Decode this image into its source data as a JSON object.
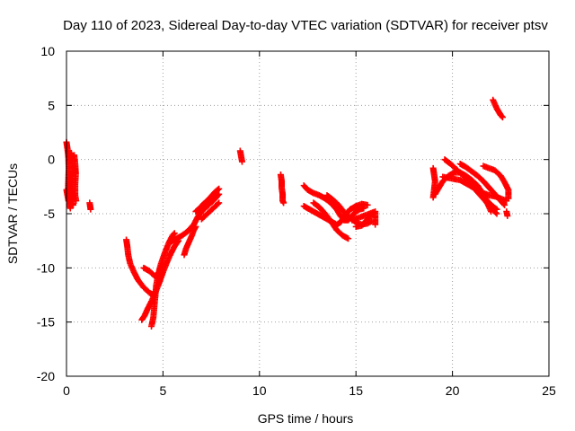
{
  "colors": {
    "background": "#ffffff",
    "series": "#ff0000",
    "axis": "#000000",
    "grid": "#a0a0a0"
  },
  "chart_data": {
    "type": "scatter",
    "title": "Day 110 of 2023, Sidereal Day-to-day VTEC variation (SDTVAR) for receiver ptsv",
    "xlabel": "GPS time / hours",
    "ylabel": "SDTVAR / TECUs",
    "xlim": [
      0,
      25
    ],
    "ylim": [
      -20,
      10
    ],
    "xticks": [
      0,
      5,
      10,
      15,
      20,
      25
    ],
    "yticks": [
      -20,
      -15,
      -10,
      -5,
      0,
      5,
      10
    ],
    "grid": true,
    "marker": "+",
    "series": [
      {
        "name": "SDTVAR",
        "segments": [
          [
            [
              0.0,
              1.6
            ],
            [
              0.05,
              1.0
            ],
            [
              0.1,
              0.2
            ],
            [
              0.12,
              -0.8
            ],
            [
              0.1,
              -1.8
            ],
            [
              0.08,
              -2.8
            ],
            [
              0.1,
              -3.4
            ],
            [
              0.15,
              -4.0
            ],
            [
              0.2,
              -4.5
            ]
          ],
          [
            [
              0.0,
              -2.8
            ],
            [
              0.05,
              -3.3
            ],
            [
              0.1,
              -3.8
            ]
          ],
          [
            [
              0.25,
              0.6
            ],
            [
              0.3,
              0.0
            ],
            [
              0.32,
              -0.8
            ],
            [
              0.3,
              -1.6
            ],
            [
              0.28,
              -2.6
            ],
            [
              0.3,
              -3.5
            ],
            [
              0.35,
              -4.2
            ]
          ],
          [
            [
              0.4,
              0.4
            ],
            [
              0.45,
              -0.4
            ],
            [
              0.48,
              -1.3
            ],
            [
              0.45,
              -2.3
            ],
            [
              0.45,
              -3.3
            ],
            [
              0.5,
              -3.8
            ]
          ],
          [
            [
              1.2,
              -4.0
            ],
            [
              1.25,
              -4.6
            ]
          ],
          [
            [
              3.1,
              -7.4
            ],
            [
              3.15,
              -8.0
            ],
            [
              3.2,
              -8.8
            ],
            [
              3.3,
              -9.6
            ],
            [
              3.5,
              -10.4
            ],
            [
              3.7,
              -11.1
            ],
            [
              4.0,
              -11.8
            ],
            [
              4.3,
              -12.3
            ],
            [
              4.6,
              -12.6
            ]
          ],
          [
            [
              3.9,
              -14.8
            ],
            [
              4.05,
              -14.4
            ],
            [
              4.2,
              -13.8
            ],
            [
              4.4,
              -13.1
            ],
            [
              4.6,
              -12.3
            ],
            [
              4.8,
              -11.4
            ],
            [
              5.0,
              -10.4
            ],
            [
              5.2,
              -9.5
            ],
            [
              5.4,
              -8.7
            ],
            [
              5.6,
              -8.0
            ],
            [
              5.8,
              -7.5
            ]
          ],
          [
            [
              4.4,
              -15.4
            ],
            [
              4.5,
              -14.6
            ],
            [
              4.55,
              -13.6
            ],
            [
              4.6,
              -12.6
            ],
            [
              4.65,
              -11.6
            ],
            [
              4.75,
              -10.6
            ],
            [
              4.9,
              -9.6
            ],
            [
              5.1,
              -8.6
            ],
            [
              5.3,
              -7.7
            ],
            [
              5.5,
              -7.0
            ],
            [
              5.6,
              -6.8
            ]
          ],
          [
            [
              4.0,
              -10.0
            ],
            [
              4.3,
              -10.3
            ],
            [
              4.6,
              -10.8
            ],
            [
              4.8,
              -10.4
            ],
            [
              5.0,
              -9.6
            ]
          ],
          [
            [
              6.1,
              -8.8
            ],
            [
              6.2,
              -8.2
            ],
            [
              6.35,
              -7.6
            ],
            [
              6.5,
              -7.0
            ],
            [
              6.6,
              -6.5
            ],
            [
              6.7,
              -6.2
            ]
          ],
          [
            [
              5.4,
              -7.6
            ],
            [
              5.7,
              -7.3
            ],
            [
              6.0,
              -7.0
            ],
            [
              6.3,
              -6.6
            ],
            [
              6.6,
              -6.0
            ],
            [
              6.8,
              -5.3
            ],
            [
              7.0,
              -4.8
            ],
            [
              7.3,
              -4.3
            ],
            [
              7.6,
              -3.8
            ],
            [
              7.9,
              -3.2
            ]
          ],
          [
            [
              6.7,
              -4.8
            ],
            [
              6.9,
              -4.5
            ],
            [
              7.1,
              -4.1
            ],
            [
              7.3,
              -3.8
            ],
            [
              7.5,
              -3.4
            ],
            [
              7.7,
              -3.0
            ],
            [
              7.9,
              -2.7
            ]
          ],
          [
            [
              7.0,
              -5.5
            ],
            [
              7.3,
              -5.0
            ],
            [
              7.6,
              -4.5
            ],
            [
              7.9,
              -4.0
            ]
          ],
          [
            [
              9.0,
              0.8
            ],
            [
              9.05,
              0.3
            ],
            [
              9.1,
              -0.2
            ]
          ],
          [
            [
              11.1,
              -1.4
            ],
            [
              11.15,
              -2.0
            ],
            [
              11.15,
              -2.6
            ],
            [
              11.2,
              -3.2
            ],
            [
              11.2,
              -3.8
            ],
            [
              11.25,
              -4.0
            ]
          ],
          [
            [
              12.3,
              -2.4
            ],
            [
              12.5,
              -2.8
            ],
            [
              12.8,
              -3.1
            ],
            [
              13.1,
              -3.3
            ],
            [
              13.4,
              -3.6
            ],
            [
              13.7,
              -4.0
            ],
            [
              14.0,
              -4.6
            ],
            [
              14.2,
              -5.2
            ],
            [
              14.4,
              -5.6
            ],
            [
              14.6,
              -5.6
            ],
            [
              14.8,
              -5.2
            ],
            [
              15.0,
              -4.8
            ],
            [
              15.2,
              -4.6
            ],
            [
              15.4,
              -4.5
            ]
          ],
          [
            [
              12.3,
              -4.3
            ],
            [
              12.6,
              -4.6
            ],
            [
              12.9,
              -4.9
            ],
            [
              13.2,
              -5.2
            ],
            [
              13.5,
              -5.5
            ],
            [
              13.8,
              -5.8
            ],
            [
              14.0,
              -6.0
            ],
            [
              14.2,
              -5.8
            ],
            [
              14.5,
              -5.0
            ],
            [
              14.7,
              -4.6
            ],
            [
              15.0,
              -4.3
            ],
            [
              15.3,
              -4.1
            ],
            [
              15.6,
              -4.2
            ]
          ],
          [
            [
              12.8,
              -4.0
            ],
            [
              13.1,
              -4.4
            ],
            [
              13.4,
              -5.0
            ],
            [
              13.7,
              -5.7
            ],
            [
              14.0,
              -6.5
            ],
            [
              14.3,
              -7.0
            ],
            [
              14.6,
              -7.3
            ]
          ],
          [
            [
              13.5,
              -3.3
            ],
            [
              13.8,
              -3.7
            ],
            [
              14.1,
              -4.2
            ],
            [
              14.4,
              -4.9
            ],
            [
              14.7,
              -5.4
            ],
            [
              15.0,
              -5.8
            ],
            [
              15.3,
              -6.0
            ],
            [
              15.6,
              -5.9
            ],
            [
              15.8,
              -5.7
            ]
          ],
          [
            [
              14.8,
              -5.6
            ],
            [
              15.1,
              -5.4
            ],
            [
              15.4,
              -5.2
            ],
            [
              15.7,
              -5.0
            ],
            [
              16.0,
              -4.8
            ],
            [
              16.0,
              -5.5
            ],
            [
              16.0,
              -6.0
            ]
          ],
          [
            [
              15.0,
              -6.2
            ],
            [
              15.3,
              -6.1
            ],
            [
              15.6,
              -5.5
            ],
            [
              15.9,
              -4.9
            ]
          ],
          [
            [
              19.0,
              -0.8
            ],
            [
              19.05,
              -1.4
            ],
            [
              19.1,
              -2.0
            ],
            [
              19.05,
              -2.8
            ],
            [
              19.0,
              -3.5
            ]
          ],
          [
            [
              19.1,
              -3.2
            ],
            [
              19.3,
              -2.6
            ],
            [
              19.5,
              -2.0
            ],
            [
              19.8,
              -1.5
            ],
            [
              20.1,
              -1.2
            ],
            [
              20.4,
              -1.2
            ],
            [
              20.7,
              -1.5
            ],
            [
              21.0,
              -1.9
            ],
            [
              21.3,
              -2.4
            ],
            [
              21.6,
              -3.2
            ],
            [
              21.8,
              -4.0
            ],
            [
              22.0,
              -4.8
            ]
          ],
          [
            [
              19.6,
              0.0
            ],
            [
              19.9,
              -0.4
            ],
            [
              20.2,
              -0.9
            ],
            [
              20.5,
              -1.4
            ],
            [
              20.8,
              -1.9
            ],
            [
              21.1,
              -2.5
            ],
            [
              21.4,
              -3.0
            ],
            [
              21.7,
              -3.6
            ],
            [
              22.0,
              -4.2
            ],
            [
              22.3,
              -4.6
            ]
          ],
          [
            [
              19.5,
              -1.6
            ],
            [
              19.8,
              -1.7
            ],
            [
              20.1,
              -1.8
            ],
            [
              20.4,
              -1.9
            ],
            [
              20.7,
              -2.2
            ],
            [
              21.0,
              -2.5
            ],
            [
              21.3,
              -2.8
            ],
            [
              21.6,
              -3.1
            ],
            [
              21.9,
              -3.3
            ],
            [
              22.2,
              -3.4
            ],
            [
              22.5,
              -3.6
            ],
            [
              22.8,
              -3.8
            ]
          ],
          [
            [
              20.4,
              -0.4
            ],
            [
              20.7,
              -0.7
            ],
            [
              21.0,
              -1.1
            ],
            [
              21.3,
              -1.5
            ],
            [
              21.6,
              -2.0
            ],
            [
              21.9,
              -2.6
            ],
            [
              22.2,
              -3.2
            ],
            [
              22.5,
              -3.8
            ],
            [
              22.7,
              -4.2
            ]
          ],
          [
            [
              21.6,
              -0.6
            ],
            [
              21.9,
              -0.8
            ],
            [
              22.2,
              -1.0
            ],
            [
              22.5,
              -1.5
            ],
            [
              22.7,
              -2.1
            ],
            [
              22.9,
              -2.8
            ],
            [
              22.9,
              -3.6
            ]
          ],
          [
            [
              20.8,
              -2.2
            ],
            [
              21.1,
              -2.6
            ],
            [
              21.4,
              -3.2
            ],
            [
              21.7,
              -3.8
            ],
            [
              22.0,
              -4.5
            ],
            [
              22.3,
              -5.0
            ]
          ],
          [
            [
              22.1,
              5.5
            ],
            [
              22.2,
              5.1
            ],
            [
              22.3,
              4.7
            ],
            [
              22.4,
              4.4
            ],
            [
              22.5,
              4.1
            ],
            [
              22.6,
              3.9
            ]
          ],
          [
            [
              22.8,
              -4.8
            ],
            [
              22.85,
              -5.2
            ]
          ]
        ]
      }
    ]
  }
}
